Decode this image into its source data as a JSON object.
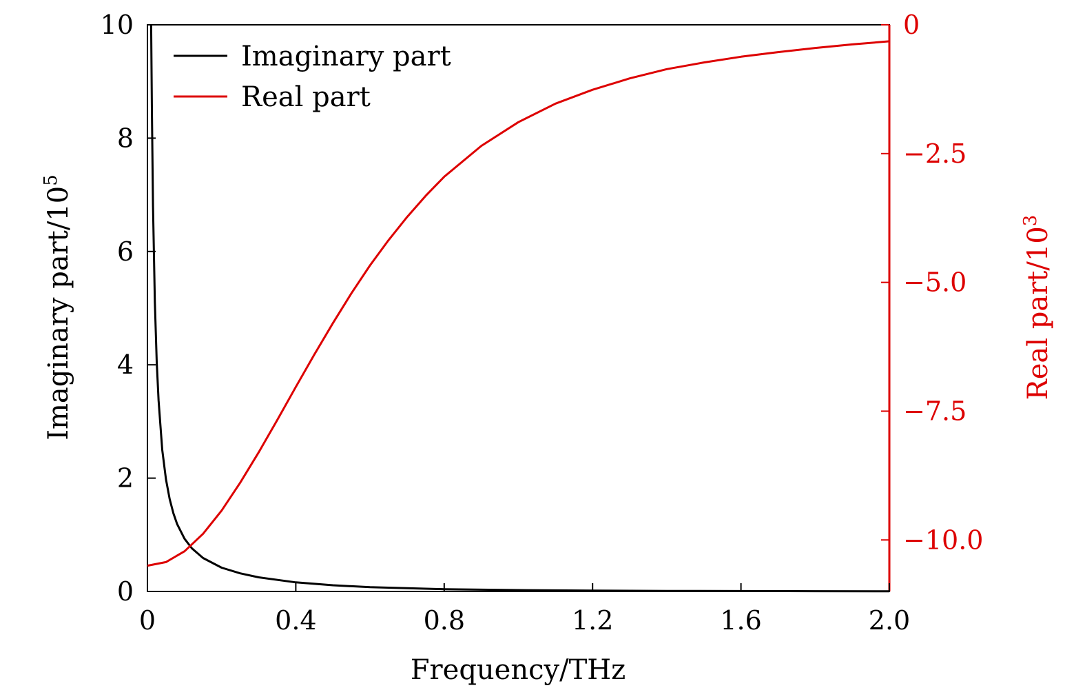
{
  "chart_data": {
    "type": "line",
    "x_axis": {
      "label": "Frequency/THz",
      "range": [
        0,
        2.0
      ],
      "ticks": [
        0,
        0.4,
        0.8,
        1.2,
        1.6,
        2.0
      ],
      "tick_labels": [
        "0",
        "0.4",
        "0.8",
        "1.2",
        "1.6",
        "2.0"
      ]
    },
    "y_axis_left": {
      "label_base": "Imaginary part/10",
      "label_sup": "5",
      "range": [
        0,
        10
      ],
      "ticks": [
        0,
        2,
        4,
        6,
        8,
        10
      ],
      "tick_labels": [
        "0",
        "2",
        "4",
        "6",
        "8",
        "10"
      ],
      "color": "#000000"
    },
    "y_axis_right": {
      "label_base": "Real part/10",
      "label_sup": "3",
      "range": [
        -11,
        0
      ],
      "ticks": [
        0,
        -2.5,
        -5.0,
        -7.5,
        -10.0
      ],
      "tick_labels": [
        "0",
        "−2.5",
        "−5.0",
        "−7.5",
        "−10.0"
      ],
      "color": "#dd0000"
    },
    "series": [
      {
        "name": "Imaginary part",
        "axis": "left",
        "color": "#000000",
        "x": [
          0.01,
          0.012,
          0.015,
          0.02,
          0.025,
          0.03,
          0.04,
          0.05,
          0.06,
          0.07,
          0.08,
          0.1,
          0.12,
          0.15,
          0.2,
          0.25,
          0.3,
          0.4,
          0.5,
          0.6,
          0.8,
          1.0,
          1.2,
          1.4,
          1.6,
          1.8,
          2.0
        ],
        "y": [
          10.0,
          8.5,
          6.8,
          5.1,
          4.05,
          3.37,
          2.5,
          1.98,
          1.63,
          1.38,
          1.19,
          0.93,
          0.76,
          0.59,
          0.42,
          0.32,
          0.25,
          0.16,
          0.11,
          0.075,
          0.04,
          0.024,
          0.015,
          0.01,
          0.007,
          0.005,
          0.003
        ]
      },
      {
        "name": "Real part",
        "axis": "right",
        "color": "#dd0000",
        "x": [
          0,
          0.05,
          0.1,
          0.15,
          0.2,
          0.25,
          0.3,
          0.35,
          0.4,
          0.45,
          0.5,
          0.55,
          0.6,
          0.65,
          0.7,
          0.75,
          0.8,
          0.9,
          1.0,
          1.1,
          1.2,
          1.3,
          1.4,
          1.5,
          1.6,
          1.7,
          1.8,
          1.9,
          2.0
        ],
        "y": [
          -10.5,
          -10.43,
          -10.22,
          -9.88,
          -9.43,
          -8.89,
          -8.3,
          -7.67,
          -7.03,
          -6.4,
          -5.79,
          -5.21,
          -4.67,
          -4.18,
          -3.73,
          -3.32,
          -2.95,
          -2.35,
          -1.89,
          -1.53,
          -1.26,
          -1.04,
          -0.86,
          -0.73,
          -0.62,
          -0.53,
          -0.45,
          -0.38,
          -0.32
        ]
      }
    ],
    "legend": {
      "position": "top-left",
      "entries": [
        "Imaginary part",
        "Real part"
      ]
    },
    "grid": false
  }
}
